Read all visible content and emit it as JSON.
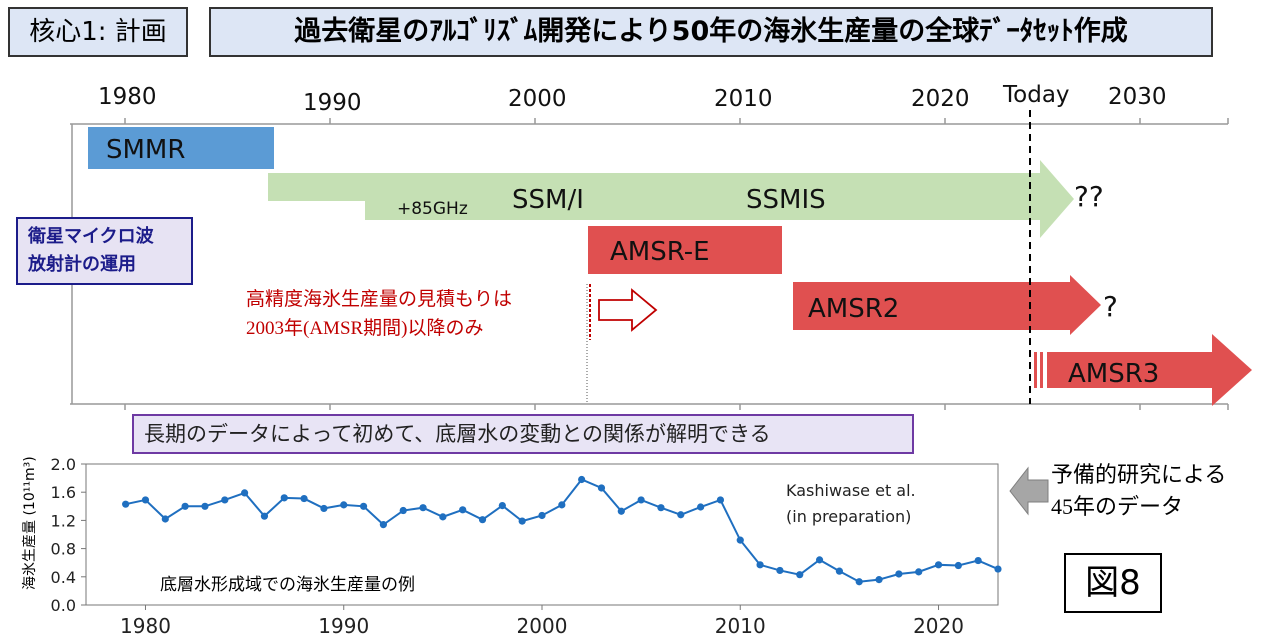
{
  "header": {
    "section_label": "核心1: 計画",
    "title": "過去衛星のｱﾙｺﾞﾘｽﾞﾑ開発により50年の海氷生産量の全球ﾃﾞｰﾀｾｯﾄ作成"
  },
  "timeline": {
    "years": [
      "1980",
      "1990",
      "2000",
      "2010",
      "2020",
      "Today",
      "2030"
    ],
    "today_label": "Today",
    "side_label_line1": "衛星マイクロ波",
    "side_label_line2": "放射計の運用",
    "bars": {
      "smmr": "SMMR",
      "ssm_prefix": "+85GHz",
      "ssmi": "SSM/I",
      "ssmis": "SSMIS",
      "ssm_unknown": "??",
      "amsre": "AMSR-E",
      "amsr2": "AMSR2",
      "amsr2_unknown": "?",
      "amsr3": "AMSR3"
    },
    "colors": {
      "smmr": "#5b9bd5",
      "ssm": "#c5e0b4",
      "amsr": "#e05050",
      "note": "#c00000"
    },
    "note_line1": "高精度海氷生産量の見積もりは",
    "note_line2": "2003年(AMSR期間)以降のみ"
  },
  "message": "長期のデータによって初めて、底層水の変動との関係が解明できる",
  "prelim_line1": "予備的研究による",
  "prelim_line2": "45年のデータ",
  "figure_label": "図8",
  "chart_data": {
    "type": "line",
    "ylabel": "海氷生産量 (10¹¹m³)",
    "caption": "底層水形成域での海氷生産量の例",
    "annotation_line1": "Kashiwase et al.",
    "annotation_line2": "(in preparation)",
    "xlim": [
      1977,
      2023
    ],
    "ylim": [
      0,
      2.0
    ],
    "xticks": [
      1980,
      1990,
      2000,
      2010,
      2020
    ],
    "yticks": [
      0.0,
      0.4,
      0.8,
      1.2,
      1.6,
      2.0
    ],
    "ytick_labels": [
      "0.0",
      "0.4",
      "0.8",
      "1.2",
      "1.6",
      "2.0"
    ],
    "grid": false,
    "color": "#1f6fc0",
    "series": [
      {
        "x": [
          1979,
          1980,
          1981,
          1982,
          1983,
          1984,
          1985,
          1986,
          1987,
          1988,
          1989,
          1990,
          1991,
          1992,
          1993,
          1994,
          1995,
          1996,
          1997,
          1998,
          1999,
          2000,
          2001,
          2002,
          2003,
          2004,
          2005,
          2006,
          2007,
          2008,
          2009,
          2010,
          2011,
          2012,
          2013,
          2014,
          2015,
          2016,
          2017,
          2018,
          2019,
          2020,
          2021,
          2022,
          2023
        ],
        "values": [
          1.43,
          1.49,
          1.22,
          1.4,
          1.4,
          1.49,
          1.59,
          1.26,
          1.52,
          1.51,
          1.37,
          1.42,
          1.4,
          1.14,
          1.34,
          1.38,
          1.25,
          1.35,
          1.21,
          1.41,
          1.19,
          1.27,
          1.42,
          1.78,
          1.66,
          1.33,
          1.49,
          1.38,
          1.28,
          1.39,
          1.49,
          0.92,
          0.57,
          0.49,
          0.43,
          0.64,
          0.48,
          0.33,
          0.36,
          0.44,
          0.47,
          0.57,
          0.56,
          0.63,
          0.51
        ]
      }
    ]
  }
}
